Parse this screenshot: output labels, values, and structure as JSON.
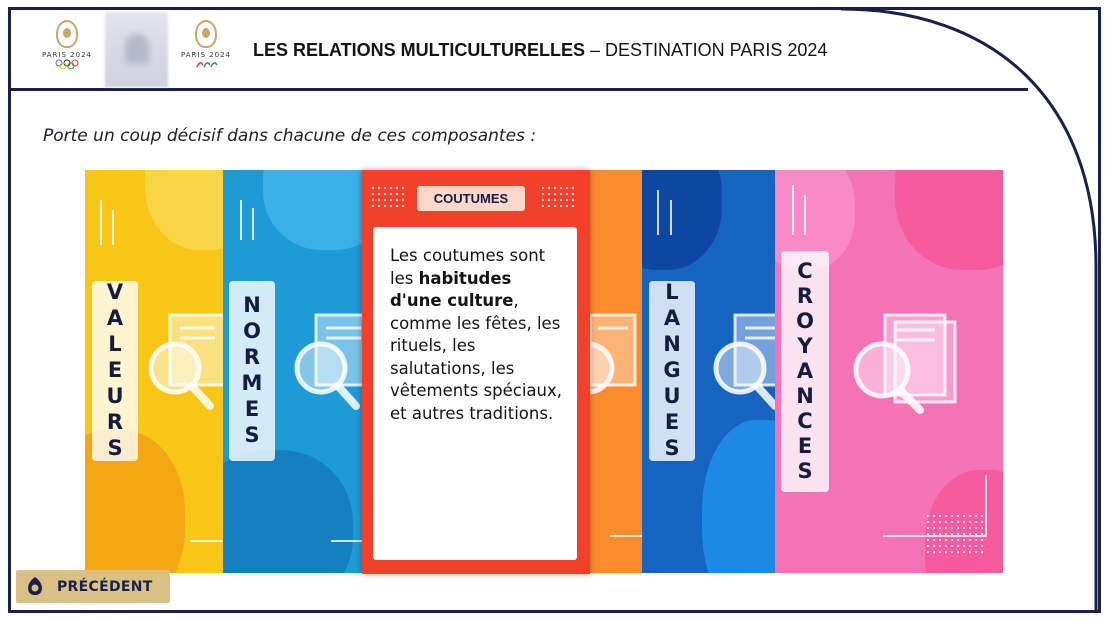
{
  "header": {
    "logo_left_text": "PARIS 2024",
    "logo_right_text": "PARIS 2024",
    "title_bold": "LES RELATIONS MULTICULTURELLES",
    "title_rest": " – DESTINATION PARIS 2024"
  },
  "instruction": "Porte un coup décisif dans chacune de ces composantes :",
  "cards": [
    {
      "label": "VALEURS",
      "color": "#f7c616"
    },
    {
      "label": "NORMES",
      "color": "#1e9bd7"
    },
    {
      "label": "LANGUES",
      "color": "#1565c0"
    },
    {
      "label": "CROYANCES",
      "color": "#f472b6"
    }
  ],
  "active_card": {
    "tag": "COUTUMES",
    "color": "#f2412a",
    "text_before": "Les coutumes sont les ",
    "text_bold": "habitudes d'une culture",
    "text_after": ", comme les fêtes, les rituels, les salutations, les vêtements spéciaux, et autres traditions."
  },
  "navigation": {
    "previous_label": "PRÉCÉDENT"
  },
  "colors": {
    "frame": "#1a1f4d",
    "accent_gold": "#d9c085"
  }
}
